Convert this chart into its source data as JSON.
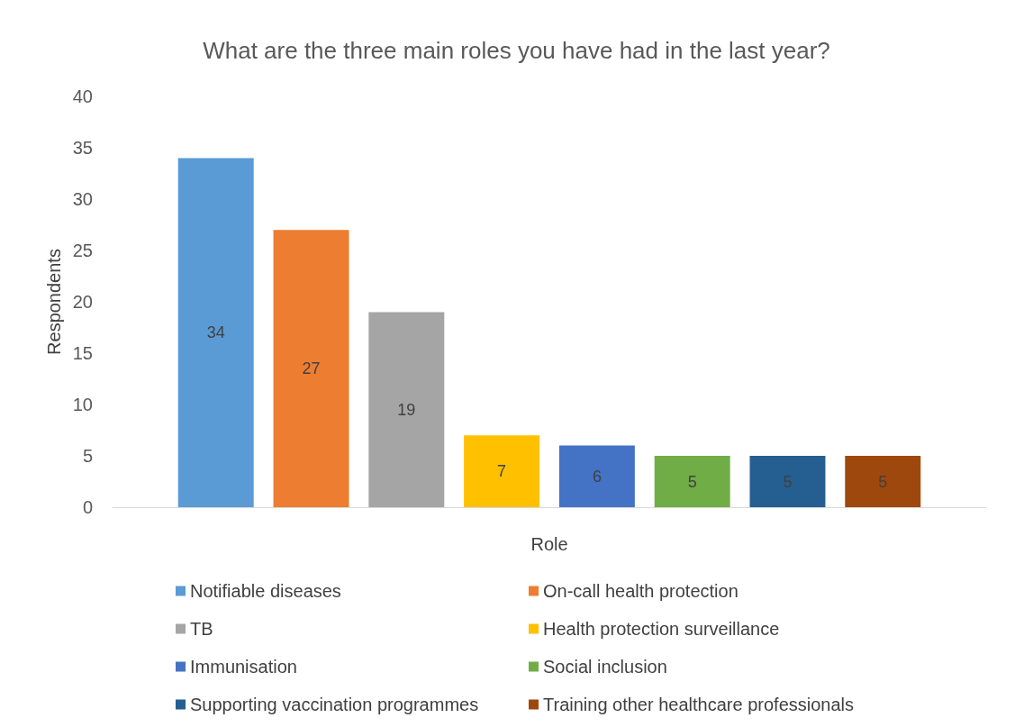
{
  "chart_data": {
    "type": "bar",
    "title": "What are the three main roles you have had in the last year?",
    "xlabel": "Role",
    "ylabel": "Respondents",
    "categories": [
      null
    ],
    "series": [
      {
        "name": "Notifiable diseases",
        "color": "#5b9bd5",
        "values": [
          34
        ]
      },
      {
        "name": "On-call health protection",
        "color": "#ed7d31",
        "values": [
          27
        ]
      },
      {
        "name": "TB",
        "color": "#a5a5a5",
        "values": [
          19
        ]
      },
      {
        "name": "Health protection surveillance",
        "color": "#ffc000",
        "values": [
          7
        ]
      },
      {
        "name": "Immunisation",
        "color": "#4472c4",
        "values": [
          6
        ]
      },
      {
        "name": "Social inclusion",
        "color": "#70ad47",
        "values": [
          5
        ]
      },
      {
        "name": "Supporting vaccination programmes",
        "color": "#255e91",
        "values": [
          5
        ]
      },
      {
        "name": "Training other healthcare professionals",
        "color": "#9e480e",
        "values": [
          5
        ]
      }
    ],
    "ylim": [
      0,
      40
    ],
    "yticks": [
      0,
      5,
      10,
      15,
      20,
      25,
      30,
      35,
      40
    ],
    "grid": false,
    "legend": "bottom",
    "data_labels": true
  }
}
